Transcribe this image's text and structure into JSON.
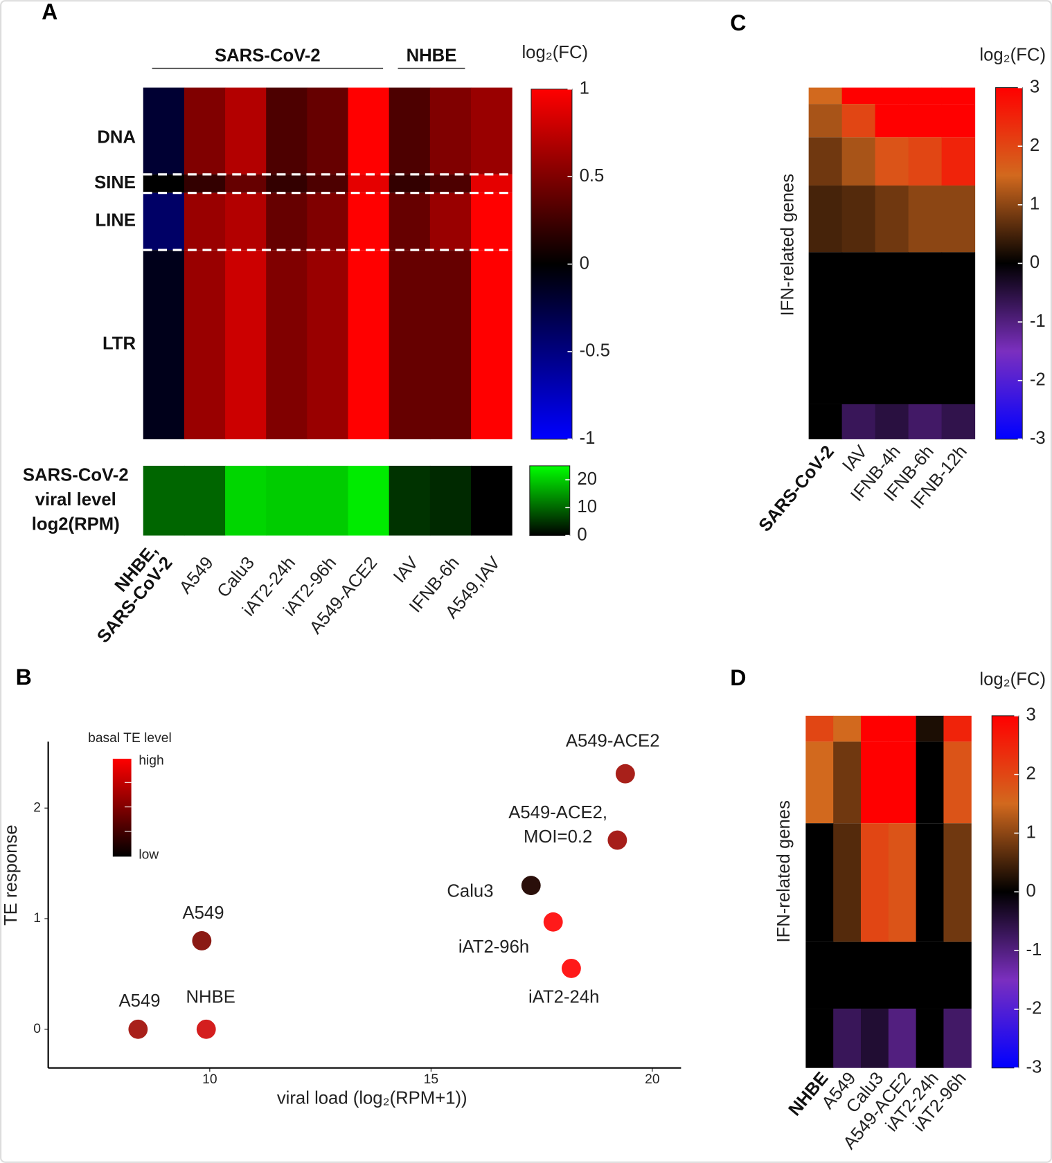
{
  "chart_data": [
    {
      "type": "heatmap",
      "panel": "A",
      "header_groups": [
        {
          "label": "SARS-CoV-2",
          "span": [
            0,
            5
          ]
        },
        {
          "label": "NHBE",
          "span": [
            6,
            7
          ]
        }
      ],
      "categories": [
        [
          "NHBE,",
          "SARS-CoV-2"
        ],
        [
          "A549"
        ],
        [
          "Calu3"
        ],
        [
          "iAT2-24h"
        ],
        [
          "iAT2-96h"
        ],
        [
          "A549-ACE2"
        ],
        [
          "IAV"
        ],
        [
          "IFNB-6h"
        ],
        [
          "A549,IAV"
        ]
      ],
      "rows": [
        {
          "label": "DNA",
          "values": [
            -0.2,
            0.5,
            0.7,
            0.3,
            0.4,
            1,
            0.3,
            0.5,
            0.6
          ]
        },
        {
          "label": "SINE",
          "values": [
            0,
            0.2,
            0.4,
            0.2,
            0.3,
            0.9,
            0.2,
            0.3,
            0.9
          ]
        },
        {
          "label": "LINE",
          "values": [
            -0.4,
            0.6,
            0.7,
            0.4,
            0.5,
            1,
            0.4,
            0.6,
            1
          ]
        },
        {
          "label": "LTR",
          "values": [
            -0.1,
            0.6,
            0.8,
            0.5,
            0.6,
            1,
            0.4,
            0.4,
            1
          ]
        }
      ],
      "colorbar_title": "log₂(FC)",
      "clim": [
        -1,
        1
      ],
      "cticks": [
        1,
        0.5,
        0,
        -0.5,
        -1
      ],
      "colors": [
        "#0000ff",
        "#000000",
        "#ff0000"
      ],
      "viral": {
        "label": [
          "SARS-CoV-2",
          "viral level",
          "log2(RPM)"
        ],
        "values": [
          10,
          10,
          21,
          20,
          20,
          23,
          5,
          4,
          0
        ],
        "clim": [
          0,
          25
        ],
        "cticks": [
          20,
          10,
          0
        ],
        "colors": [
          "#000000",
          "#00ff00"
        ]
      }
    },
    {
      "type": "scatter",
      "panel": "B",
      "xlabel": "viral load (log₂(RPM+1))",
      "ylabel": "TE response",
      "x": [
        19.39,
        19.21,
        17.26,
        17.76,
        18.17,
        9.82,
        8.38,
        9.92
      ],
      "y": [
        2.31,
        1.71,
        1.3,
        0.97,
        0.55,
        0.8,
        0,
        0
      ],
      "labels": [
        [
          "A549-ACE2"
        ],
        [
          "A549-ACE2,",
          "MOI=0.2"
        ],
        [
          "Calu3"
        ],
        [
          "iAT2-96h"
        ],
        [
          "iAT2-24h"
        ],
        [
          "A549"
        ],
        [
          "A549"
        ],
        [
          "NHBE"
        ]
      ],
      "colors": [
        "#a8201a",
        "#a61e1a",
        "#2a0f0a",
        "#ff1a1a",
        "#ff1a1a",
        "#8b1a14",
        "#a8201a",
        "#d41e1e"
      ],
      "xlim": [
        6.35,
        20.65
      ],
      "ylim": [
        -0.35,
        2.6
      ],
      "xticks": [
        10,
        15,
        20
      ],
      "yticks": [
        0,
        1,
        2
      ],
      "legend_title": "basal TE level",
      "legend_labels": [
        "high",
        "low"
      ],
      "legend_colors": [
        "#ff0000",
        "#000000"
      ],
      "legend": "top-left"
    },
    {
      "type": "heatmap",
      "panel": "C",
      "ylabel": "IFN-related genes",
      "categories": [
        "SARS-CoV-2",
        "IAV",
        "IFNB-4h",
        "IFNB-6h",
        "IFNB-12h"
      ],
      "rows": [
        {
          "values": [
            1.5,
            3,
            3,
            3,
            3
          ]
        },
        {
          "values": [
            1.2,
            2,
            3,
            3,
            3
          ]
        },
        {
          "values": [
            0.8,
            1.2,
            1.8,
            2,
            2.5
          ]
        },
        {
          "values": [
            0.5,
            0.6,
            0.8,
            1,
            1
          ]
        },
        {
          "values": [
            0,
            0,
            0,
            0,
            0
          ]
        },
        {
          "values": [
            0,
            -0.7,
            -0.5,
            -0.8,
            -0.6
          ]
        }
      ],
      "colorbar_title": "log₂(FC)",
      "clim": [
        -3,
        3
      ],
      "cticks": [
        3,
        2,
        1,
        0,
        -1,
        -2,
        -3
      ],
      "colors": [
        "#0000ff",
        "#7b2fbf",
        "#000000",
        "#d2691e",
        "#ff0000"
      ]
    },
    {
      "type": "heatmap",
      "panel": "D",
      "ylabel": "IFN-related genes",
      "categories": [
        "NHBE",
        "A549",
        "Calu3",
        "A549-ACE2",
        "iAT2-24h",
        "iAT2-96h"
      ],
      "rows": [
        {
          "values": [
            2,
            1.5,
            3,
            3,
            0.2,
            2.5
          ]
        },
        {
          "values": [
            1.5,
            0.8,
            3,
            3,
            0,
            1.8
          ]
        },
        {
          "values": [
            0,
            0.6,
            2,
            1.8,
            0,
            0.8
          ]
        },
        {
          "values": [
            0,
            0,
            0,
            0,
            0,
            0
          ]
        },
        {
          "values": [
            0,
            -0.7,
            -0.4,
            -1,
            0,
            -0.8
          ]
        }
      ],
      "colorbar_title": "log₂(FC)",
      "clim": [
        -3,
        3
      ],
      "cticks": [
        3,
        2,
        1,
        0,
        -1,
        -2,
        -3
      ],
      "colors": [
        "#0000ff",
        "#7b2fbf",
        "#000000",
        "#d2691e",
        "#ff0000"
      ]
    }
  ]
}
